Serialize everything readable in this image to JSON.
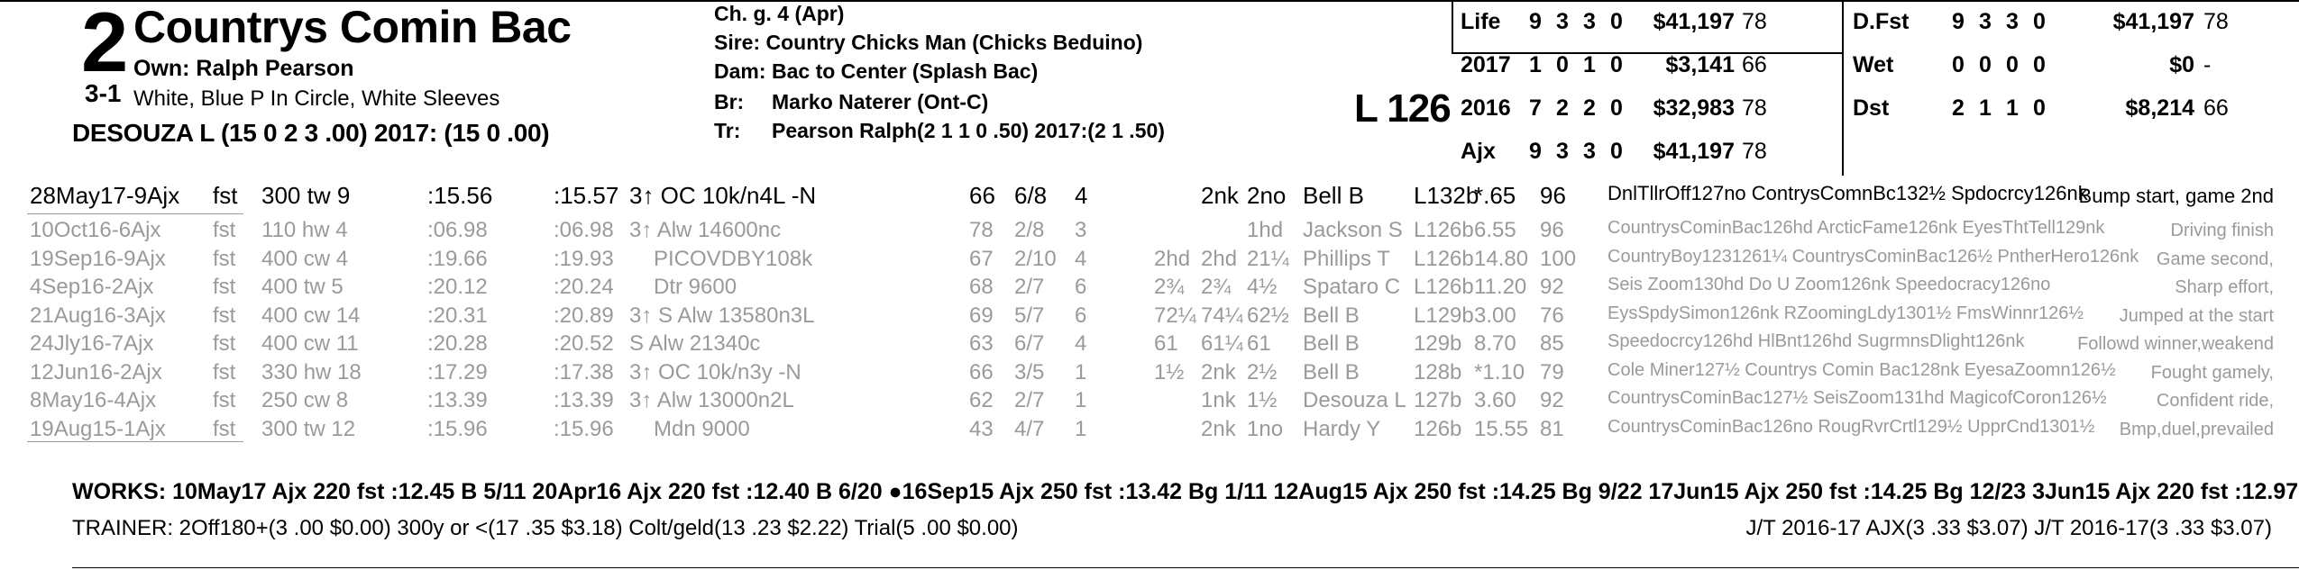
{
  "header": {
    "program_number": "2",
    "odds": "3-1",
    "horse_name": "Countrys Comin Bac",
    "owner": "Own: Ralph Pearson",
    "silks": "White, Blue P In Circle, White Sleeves",
    "jockey": "DESOUZA L (15 0 2 3 .00) 2017: (15 0 .00)"
  },
  "pedigree": {
    "description": "Ch. g. 4 (Apr)",
    "sire": "Sire: Country Chicks Man (Chicks Beduino)",
    "dam_label": "Dam:",
    "dam": "Bac to Center (Splash Bac)",
    "breeder_label": "Br:",
    "breeder": "Marko Naterer (Ont-C)",
    "trainer_label": "Tr:",
    "trainer": "Pearson Ralph(2 1 1 0 .50)  2017:(2 1 .50)"
  },
  "weight": "L 126",
  "stats": {
    "left": [
      {
        "label": "Life",
        "st": "9",
        "w": "3",
        "p": "3",
        "s": "0",
        "earn": "$41,197",
        "fig": "78"
      },
      {
        "label": "2017",
        "st": "1",
        "w": "0",
        "p": "1",
        "s": "0",
        "earn": "$3,141",
        "fig": "66"
      },
      {
        "label": "2016",
        "st": "7",
        "w": "2",
        "p": "2",
        "s": "0",
        "earn": "$32,983",
        "fig": "78"
      },
      {
        "label": "Ajx",
        "st": "9",
        "w": "3",
        "p": "3",
        "s": "0",
        "earn": "$41,197",
        "fig": "78"
      }
    ],
    "right": [
      {
        "label": "D.Fst",
        "st": "9",
        "w": "3",
        "p": "3",
        "s": "0",
        "earn": "$41,197",
        "fig": "78"
      },
      {
        "label": "Wet",
        "st": "0",
        "w": "0",
        "p": "0",
        "s": "0",
        "earn": "$0",
        "fig": "-"
      },
      {
        "label": "Dst",
        "st": "2",
        "w": "1",
        "p": "1",
        "s": "0",
        "earn": "$8,214",
        "fig": "66"
      }
    ]
  },
  "races": [
    {
      "date": "28May17-9Ajx",
      "trk": "fst",
      "dist": "300 tw 9",
      "f1": ":15.56",
      "f2": ":15.57",
      "cls_pre": "3↑ OC 10k/n4L -N",
      "cls": "",
      "fig": "66",
      "pp": "6/8",
      "st": "4",
      "c1": "",
      "c2": "2nk",
      "fin": "2no",
      "jky": "Bell B",
      "med": "L132b",
      "odds": "*.65",
      "sp": "96",
      "tf": "DnlTllrOff127no ContrysComnBc132½ Spdocrcy126nk",
      "cmt": "Bump start, game 2nd"
    },
    {
      "date": "10Oct16-6Ajx",
      "trk": "fst",
      "dist": "110 hw 4",
      "f1": ":06.98",
      "f2": ":06.98",
      "cls_pre": "3↑ Alw 14600nc",
      "cls": "",
      "fig": "78",
      "pp": "2/8",
      "st": "3",
      "c1": "",
      "c2": "",
      "fin": "1hd",
      "jky": "Jackson S",
      "med": "L126b",
      "odds": "6.55",
      "sp": "96",
      "tf": "CountrysCominBac126hd ArcticFame126nk EyesThtTell129nk",
      "cmt": "Driving finish"
    },
    {
      "date": "19Sep16-9Ajx",
      "trk": "fst",
      "dist": "400 cw 4",
      "f1": ":19.66",
      "f2": ":19.93",
      "cls_pre": "",
      "cls": "PICOVDBY108k",
      "fig": "67",
      "pp": "2/10",
      "st": "4",
      "c1": "2hd",
      "c2": "2hd",
      "fin": "21¼",
      "jky": "Phillips T",
      "med": "L126b",
      "odds": "14.80",
      "sp": "100",
      "tf": "CountryBoy1231261¼ CountrysCominBac126½ PntherHero126nk",
      "cmt": "Game second,"
    },
    {
      "date": "4Sep16-2Ajx",
      "trk": "fst",
      "dist": "400 tw 5",
      "f1": ":20.12",
      "f2": ":20.24",
      "cls_pre": "",
      "cls": "Dtr 9600",
      "fig": "68",
      "pp": "2/7",
      "st": "6",
      "c1": "2¾",
      "c2": "2¾",
      "fin": "4½",
      "jky": "Spataro C",
      "med": "L126b",
      "odds": "11.20",
      "sp": "92",
      "tf": "Seis Zoom130hd Do U Zoom126nk Speedocracy126no",
      "cmt": "Sharp effort,"
    },
    {
      "date": "21Aug16-3Ajx",
      "trk": "fst",
      "dist": "400 cw 14",
      "f1": ":20.31",
      "f2": ":20.89",
      "cls_pre": "3↑ S Alw 13580n3L",
      "cls": "",
      "fig": "69",
      "pp": "5/7",
      "st": "6",
      "c1": "72¼",
      "c2": "74¼",
      "fin": "62½",
      "jky": "Bell B",
      "med": "L129b",
      "odds": "3.00",
      "sp": "76",
      "tf": "EysSpdySimon126nk RZoomingLdy1301½ FmsWinnr126½",
      "cmt": "Jumped at the start"
    },
    {
      "date": "24Jly16-7Ajx",
      "trk": "fst",
      "dist": "400 cw 11",
      "f1": ":20.28",
      "f2": ":20.52",
      "cls_pre": "S Alw 21340c",
      "cls": "",
      "fig": "63",
      "pp": "6/7",
      "st": "4",
      "c1": "61",
      "c2": "61¼",
      "fin": "61",
      "jky": "Bell B",
      "med": "129b",
      "odds": "8.70",
      "sp": "85",
      "tf": "Speedocrcy126hd HlBnt126hd SugrmnsDlight126nk",
      "cmt": "Followd winner,weakend"
    },
    {
      "date": "12Jun16-2Ajx",
      "trk": "fst",
      "dist": "330 hw 18",
      "f1": ":17.29",
      "f2": ":17.38",
      "cls_pre": "3↑ OC 10k/n3y -N",
      "cls": "",
      "fig": "66",
      "pp": "3/5",
      "st": "1",
      "c1": "1½",
      "c2": "2nk",
      "fin": "2½",
      "jky": "Bell B",
      "med": "128b",
      "odds": "*1.10",
      "sp": "79",
      "tf": "Cole Miner127½ Countrys Comin Bac128nk EyesaZoomn126½",
      "cmt": "Fought gamely,"
    },
    {
      "date": "8May16-4Ajx",
      "trk": "fst",
      "dist": "250 cw 8",
      "f1": ":13.39",
      "f2": ":13.39",
      "cls_pre": "3↑ Alw 13000n2L",
      "cls": "",
      "fig": "62",
      "pp": "2/7",
      "st": "1",
      "c1": "",
      "c2": "1nk",
      "fin": "1½",
      "jky": "Desouza L",
      "med": "127b",
      "odds": "3.60",
      "sp": "92",
      "tf": "CountrysCominBac127½ SeisZoom131hd MagicofCoron126½",
      "cmt": "Confident ride,"
    },
    {
      "date": "19Aug15-1Ajx",
      "trk": "fst",
      "dist": "300 tw 12",
      "f1": ":15.96",
      "f2": ":15.96",
      "cls_pre": "",
      "cls": "Mdn 9000",
      "fig": "43",
      "pp": "4/7",
      "st": "1",
      "c1": "",
      "c2": "2nk",
      "fin": "1no",
      "jky": "Hardy Y",
      "med": "126b",
      "odds": "15.55",
      "sp": "81",
      "tf": "CountrysCominBac126no RougRvrCrtl129½ UpprCnd1301½",
      "cmt": "Bmp,duel,prevailed"
    }
  ],
  "works": "WORKS:   10May17 Ajx 220 fst :12.45 B 5/11   20Apr16 Ajx 220 fst :12.40 B 6/20   ●16Sep15 Ajx 250 fst :13.42 Bg 1/11   12Aug15 Ajx 250 fst :14.25 Bg 9/22   17Jun15 Ajx 250 fst :14.25 Bg 12/23   3Jun15 Ajx 220 fst :12.97 B 8/11",
  "trainer_stats": "TRAINER: 2Off180+(3 .00 $0.00) 300y or <(17 .35 $3.18) Colt/geld(13 .23 $2.22) Trial(5 .00 $0.00)",
  "jt_stats": "J/T 2016-17 AJX(3 .33 $3.07)  J/T 2016-17(3 .33 $3.07)",
  "colors": {
    "text": "#000000",
    "faded": "#9a9a9a",
    "background": "#ffffff"
  }
}
